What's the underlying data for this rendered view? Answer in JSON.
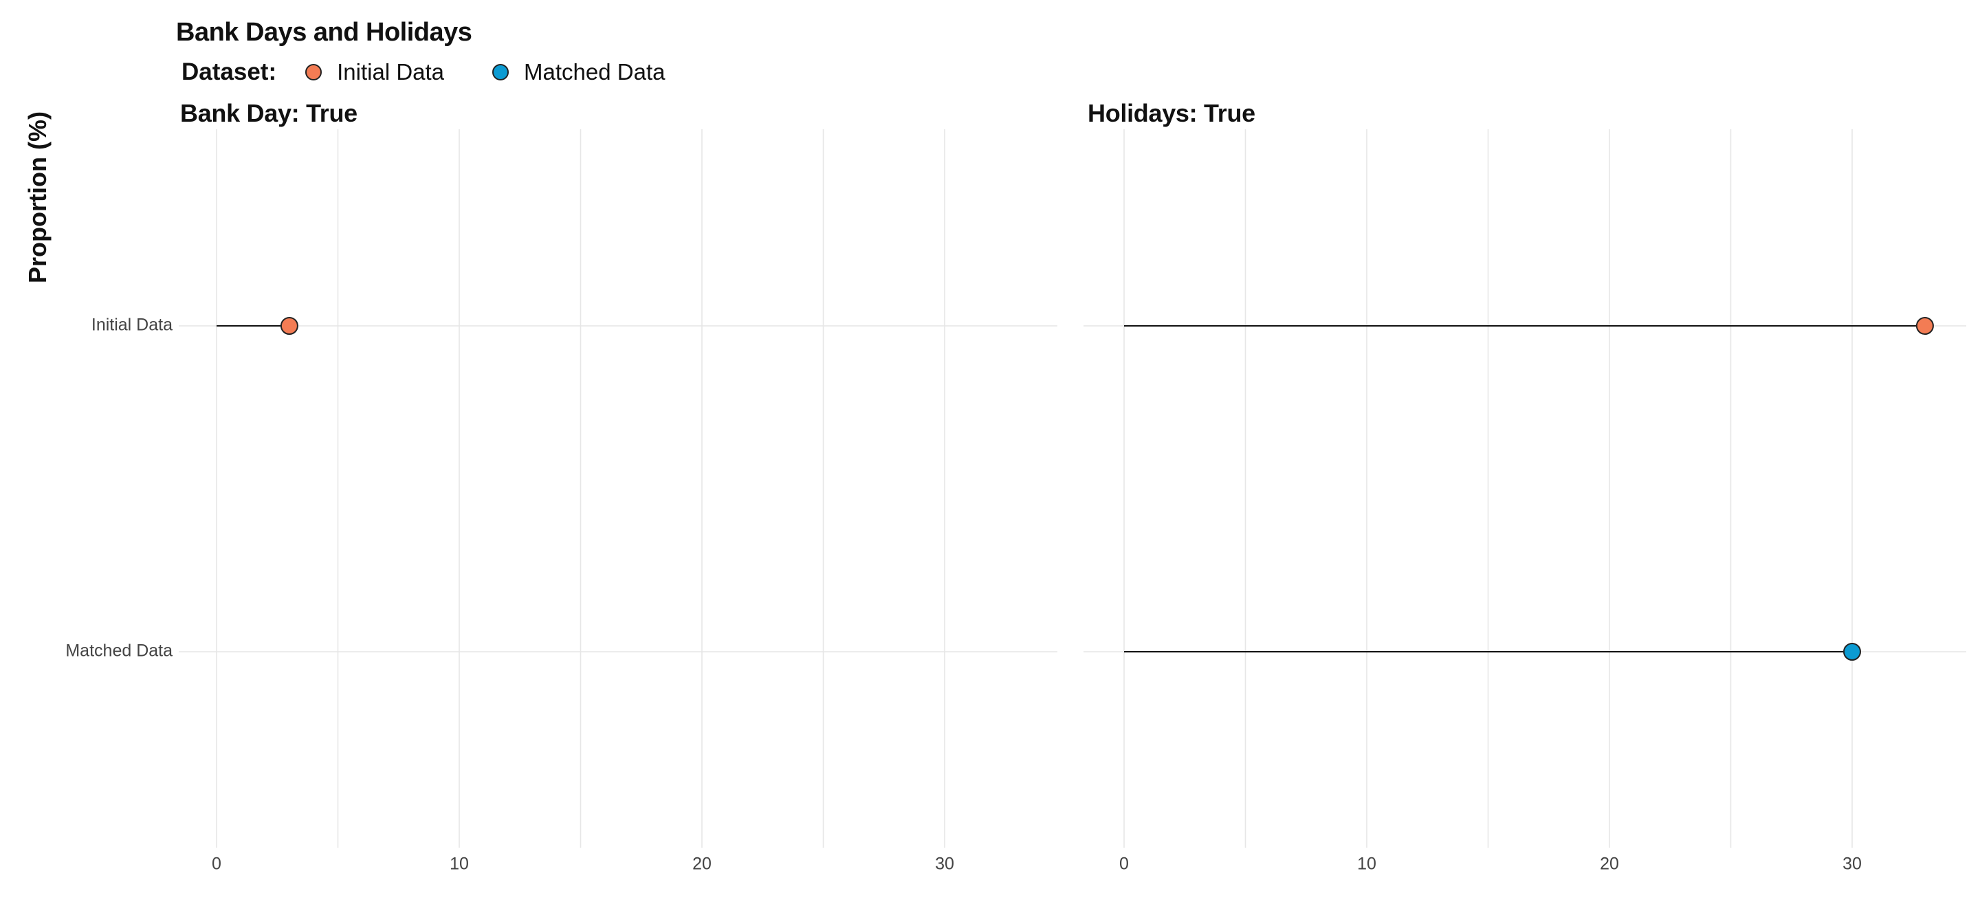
{
  "chart_data": {
    "type": "scatter",
    "title": "Bank Days and Holidays",
    "ylabel": "Proportion (%)",
    "xlabel": "",
    "legend": {
      "title": "Dataset:",
      "placement": "top-left",
      "entries": [
        {
          "name": "Initial Data",
          "color": "#F37C54"
        },
        {
          "name": "Matched Data",
          "color": "#0C9BD2"
        }
      ]
    },
    "categories": [
      "Initial Data",
      "Matched Data"
    ],
    "xlim": [
      0,
      35
    ],
    "xticks": [
      0,
      10,
      20,
      30
    ],
    "grid": true,
    "facets": [
      {
        "title": "Bank Day: True",
        "points": [
          {
            "dataset": "Initial Data",
            "value": 3
          }
        ]
      },
      {
        "title": "Holidays: True",
        "points": [
          {
            "dataset": "Initial Data",
            "value": 33
          },
          {
            "dataset": "Matched Data",
            "value": 30
          }
        ]
      }
    ]
  }
}
